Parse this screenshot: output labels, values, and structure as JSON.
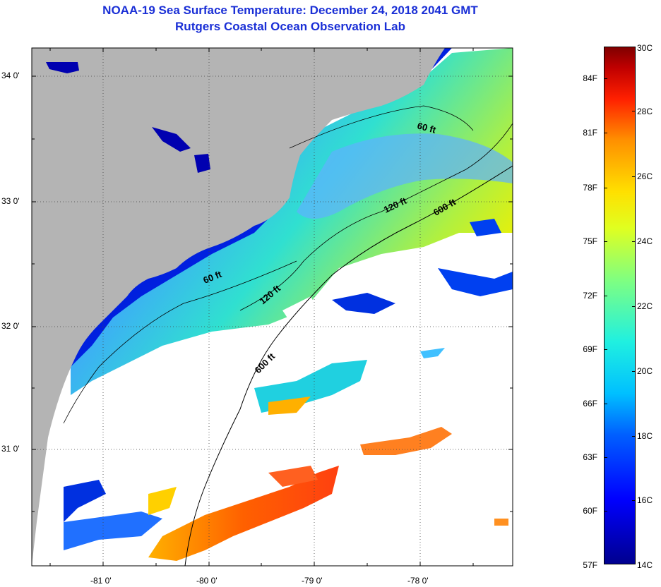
{
  "title": {
    "line1": "NOAA-19 Sea Surface Temperature:  December 24, 2018 2041 GMT",
    "line2": "Rutgers Coastal Ocean Observation Lab"
  },
  "map": {
    "lat_labels": [
      "34 0'",
      "33 0'",
      "32 0'",
      "31 0'"
    ],
    "lon_labels": [
      "-81 0'",
      "-80 0'",
      "-79 0'",
      "-78 0'"
    ],
    "contour_labels": [
      "60 ft",
      "120 ft",
      "600 ft",
      "60 ft",
      "120 ft",
      "600 ft"
    ],
    "colors": {
      "land": "#b4b4b4",
      "cloud": "#ffffff",
      "grid": "#444444"
    }
  },
  "colorbar": {
    "fahrenheit_labels": [
      "84F",
      "81F",
      "78F",
      "75F",
      "72F",
      "69F",
      "66F",
      "63F",
      "60F",
      "57F"
    ],
    "celsius_labels": [
      "30C",
      "28C",
      "26C",
      "24C",
      "22C",
      "20C",
      "18C",
      "16C",
      "14C"
    ]
  }
}
